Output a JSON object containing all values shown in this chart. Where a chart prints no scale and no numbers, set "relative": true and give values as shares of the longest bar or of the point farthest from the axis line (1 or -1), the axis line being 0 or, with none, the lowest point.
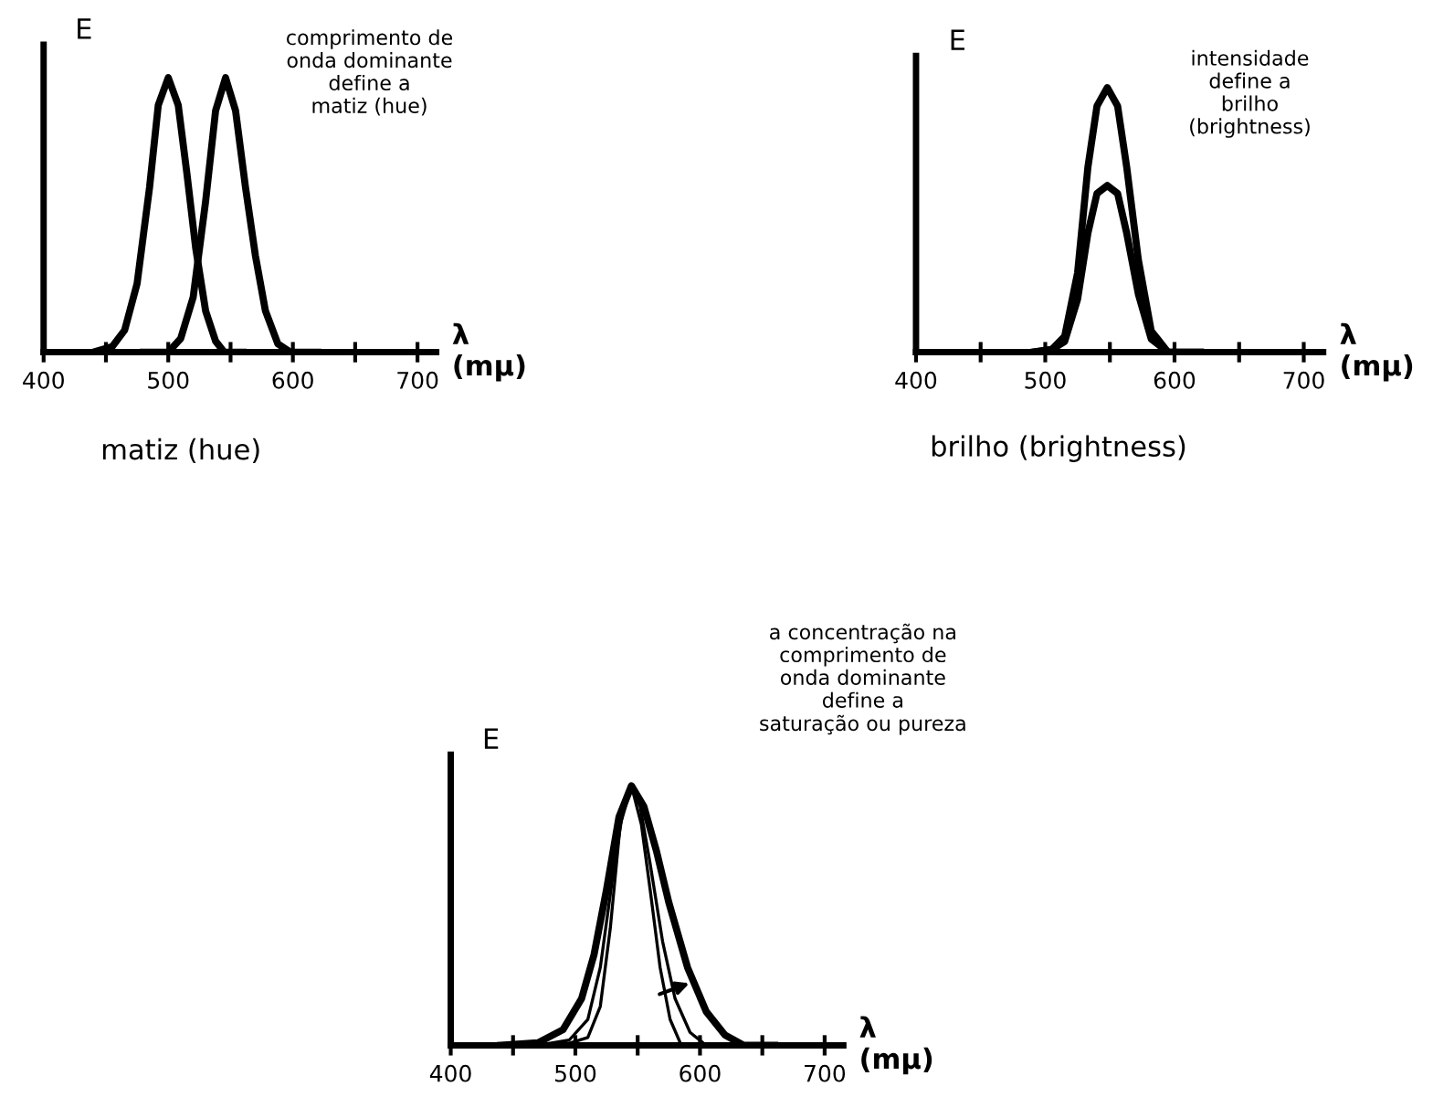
{
  "chart_data": [
    {
      "type": "line",
      "relative": true,
      "title": "matiz (hue)",
      "xlabel": "λ\n(mμ)",
      "ylabel": "E",
      "annotations": [
        "comprimento de\nonda dominante\ndefine a\nmatiz (hue)"
      ],
      "xlim": [
        400,
        715
      ],
      "xticks": [
        400,
        {
          "value": 450,
          "label": null
        },
        500,
        {
          "value": 550,
          "label": null
        },
        600,
        {
          "value": 650,
          "label": null
        },
        700
      ],
      "grid": false,
      "legend": false,
      "series": [
        {
          "color": "#000000",
          "x": [
            440,
            455,
            465,
            475,
            485,
            492,
            500,
            508,
            515,
            522,
            530,
            538,
            545,
            560
          ],
          "values": [
            0,
            0.02,
            0.08,
            0.25,
            0.6,
            0.9,
            1,
            0.9,
            0.65,
            0.38,
            0.15,
            0.04,
            0,
            0
          ]
        },
        {
          "color": "#000000",
          "x": [
            480,
            500,
            510,
            520,
            530,
            538,
            546,
            554,
            562,
            570,
            578,
            588,
            598,
            620
          ],
          "values": [
            0,
            0,
            0.05,
            0.2,
            0.55,
            0.88,
            1,
            0.88,
            0.6,
            0.35,
            0.15,
            0.03,
            0,
            0
          ]
        }
      ]
    },
    {
      "type": "line",
      "relative": true,
      "title": "brilho (brightness)",
      "xlabel": "λ\n(mμ)",
      "ylabel": "E",
      "annotations": [
        "intensidade\ndefine a\nbrilho\n(brightness)"
      ],
      "xlim": [
        400,
        715
      ],
      "xticks": [
        400,
        {
          "value": 450,
          "label": null
        },
        500,
        {
          "value": 550,
          "label": null
        },
        600,
        {
          "value": 650,
          "label": null
        },
        700
      ],
      "grid": false,
      "legend": false,
      "series": [
        {
          "color": "#000000",
          "x": [
            490,
            505,
            515,
            525,
            533,
            540,
            548,
            556,
            563,
            572,
            582,
            595,
            620
          ],
          "values": [
            0,
            0.01,
            0.06,
            0.3,
            0.7,
            0.93,
            1,
            0.93,
            0.7,
            0.35,
            0.08,
            0,
            0
          ]
        },
        {
          "color": "#000000",
          "x": [
            490,
            505,
            515,
            525,
            533,
            540,
            548,
            556,
            563,
            572,
            582,
            595,
            620
          ],
          "values": [
            0,
            0.01,
            0.04,
            0.2,
            0.45,
            0.6,
            0.63,
            0.6,
            0.45,
            0.22,
            0.05,
            0,
            0
          ]
        }
      ]
    },
    {
      "type": "line",
      "relative": true,
      "xlabel": "λ\n(mμ)",
      "ylabel": "E",
      "annotations": [
        "a concentração na\ncomprimento de\nonda dominante\ndefine a\nsaturação ou pureza"
      ],
      "xlim": [
        400,
        715
      ],
      "xticks": [
        400,
        {
          "value": 450,
          "label": null
        },
        500,
        {
          "value": 550,
          "label": null
        },
        600,
        {
          "value": 650,
          "label": null
        },
        700
      ],
      "grid": false,
      "legend": false,
      "series": [
        {
          "color": "#000000",
          "x": [
            440,
            470,
            490,
            505,
            515,
            525,
            535,
            545,
            555,
            565,
            575,
            590,
            605,
            620,
            635,
            660
          ],
          "values": [
            0,
            0.01,
            0.06,
            0.18,
            0.35,
            0.6,
            0.88,
            1,
            0.92,
            0.75,
            0.55,
            0.3,
            0.13,
            0.04,
            0,
            0
          ]
        },
        {
          "color": "#000000",
          "x": [
            470,
            495,
            510,
            520,
            530,
            538,
            545,
            552,
            560,
            570,
            580,
            592,
            605,
            620
          ],
          "values": [
            0,
            0.02,
            0.1,
            0.3,
            0.65,
            0.9,
            1,
            0.92,
            0.7,
            0.4,
            0.18,
            0.05,
            0,
            0
          ]
        },
        {
          "color": "#000000",
          "x": [
            490,
            510,
            520,
            528,
            536,
            545,
            553,
            560,
            568,
            576,
            585,
            600
          ],
          "values": [
            0,
            0.03,
            0.15,
            0.45,
            0.85,
            1,
            0.85,
            0.6,
            0.3,
            0.1,
            0,
            0
          ]
        }
      ]
    }
  ]
}
